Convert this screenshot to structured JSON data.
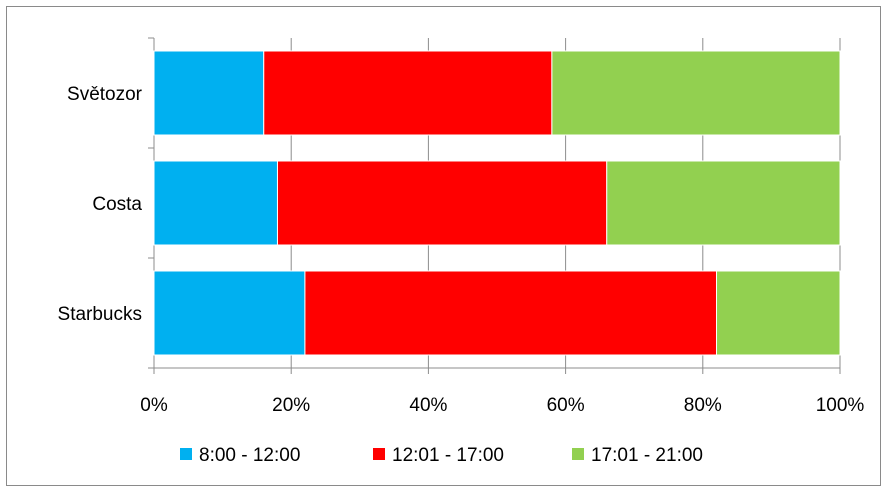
{
  "chart_data": {
    "type": "bar",
    "orientation": "horizontal",
    "stacked": "percent",
    "categories": [
      "Starbucks",
      "Costa",
      "Světozor"
    ],
    "series": [
      {
        "name": "8:00 - 12:00",
        "color": "#00b0f0",
        "values": [
          22,
          18,
          16
        ]
      },
      {
        "name": "12:01 - 17:00",
        "color": "#ff0000",
        "values": [
          60,
          48,
          42
        ]
      },
      {
        "name": "17:01 - 21:00",
        "color": "#92d050",
        "values": [
          18,
          34,
          42
        ]
      }
    ],
    "xlim": [
      0,
      100
    ],
    "xticks": [
      0,
      20,
      40,
      60,
      80,
      100
    ],
    "xtick_labels": [
      "0%",
      "20%",
      "40%",
      "60%",
      "80%",
      "100%"
    ],
    "grid": "vertical",
    "legend_position": "bottom",
    "title": "",
    "xlabel": "",
    "ylabel": ""
  }
}
